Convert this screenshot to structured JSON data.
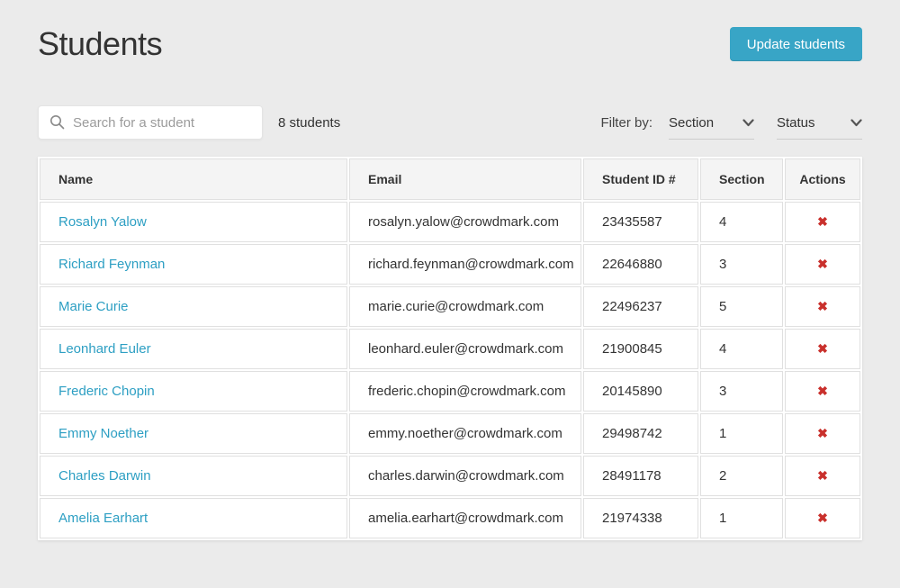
{
  "colors": {
    "page-bg": "#ebebeb",
    "accent": "#38a5c6",
    "link": "#2d9fc3",
    "danger": "#c9302c"
  },
  "header": {
    "title": "Students",
    "update_button": "Update students"
  },
  "toolbar": {
    "search_placeholder": "Search for a student",
    "search_value": "",
    "student_count": "8 students",
    "filter_label": "Filter by:",
    "filters": [
      {
        "label": "Section"
      },
      {
        "label": "Status"
      }
    ]
  },
  "table": {
    "columns": [
      "Name",
      "Email",
      "Student ID #",
      "Section",
      "Actions"
    ],
    "delete_icon": "✖",
    "rows": [
      {
        "name": "Rosalyn Yalow",
        "email": "rosalyn.yalow@crowdmark.com",
        "student_id": "23435587",
        "section": "4"
      },
      {
        "name": "Richard Feynman",
        "email": "richard.feynman@crowdmark.com",
        "student_id": "22646880",
        "section": "3"
      },
      {
        "name": "Marie Curie",
        "email": "marie.curie@crowdmark.com",
        "student_id": "22496237",
        "section": "5"
      },
      {
        "name": "Leonhard Euler",
        "email": "leonhard.euler@crowdmark.com",
        "student_id": "21900845",
        "section": "4"
      },
      {
        "name": "Frederic Chopin",
        "email": "frederic.chopin@crowdmark.com",
        "student_id": "20145890",
        "section": "3"
      },
      {
        "name": "Emmy Noether",
        "email": "emmy.noether@crowdmark.com",
        "student_id": "29498742",
        "section": "1"
      },
      {
        "name": "Charles Darwin",
        "email": "charles.darwin@crowdmark.com",
        "student_id": "28491178",
        "section": "2"
      },
      {
        "name": "Amelia Earhart",
        "email": "amelia.earhart@crowdmark.com",
        "student_id": "21974338",
        "section": "1"
      }
    ]
  }
}
